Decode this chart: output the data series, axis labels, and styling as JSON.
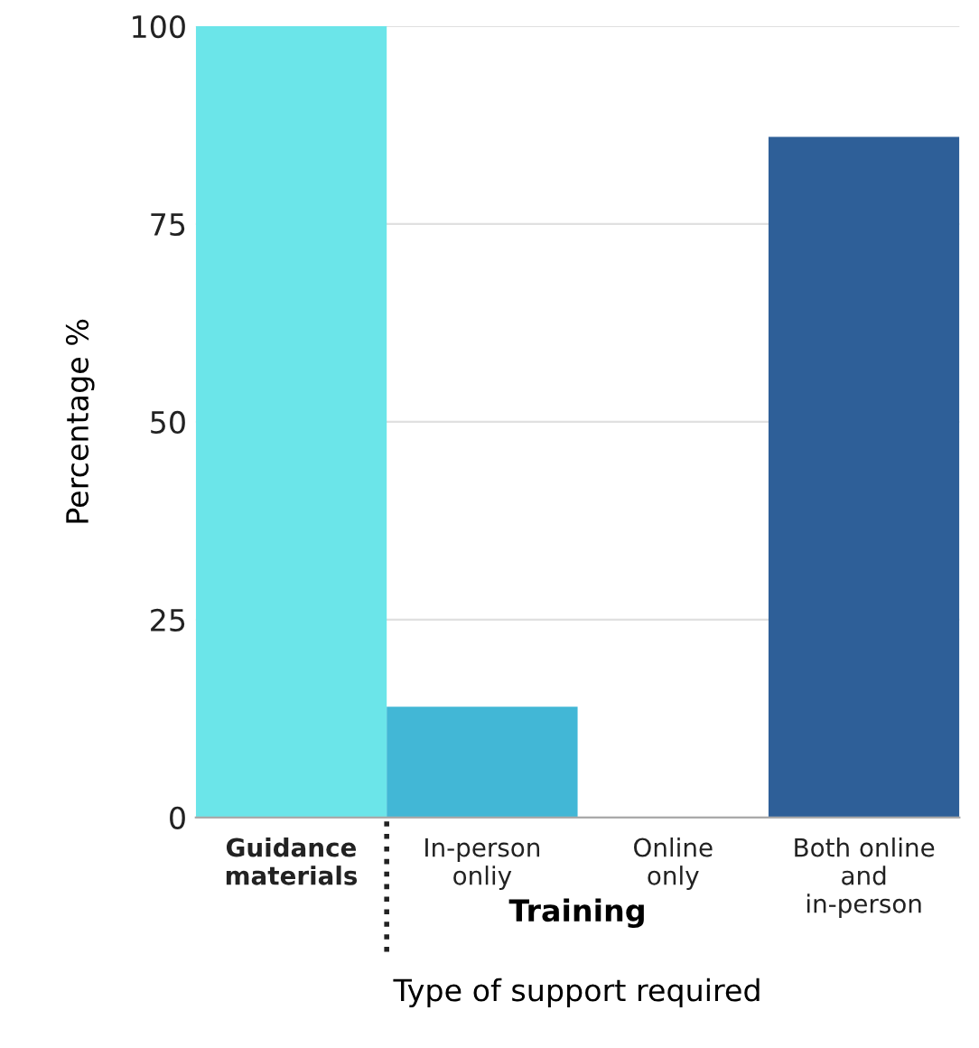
{
  "chart_data": {
    "type": "bar",
    "xlabel": "Type of support required",
    "ylabel": "Percentage %",
    "categories": [
      "Guidance\nmaterials",
      "In-person\nonliy",
      "Online\nonly",
      "Both online\nand\nin-person"
    ],
    "values": [
      100,
      14,
      0,
      86
    ],
    "colors": [
      "#6be5e9",
      "#42b7d6",
      "#42b7d6",
      "#2e5f98"
    ],
    "annotations": [
      "Training"
    ],
    "ylim": [
      0,
      100
    ],
    "yticks": [
      0,
      25,
      50,
      75,
      100
    ],
    "grid": "y"
  }
}
